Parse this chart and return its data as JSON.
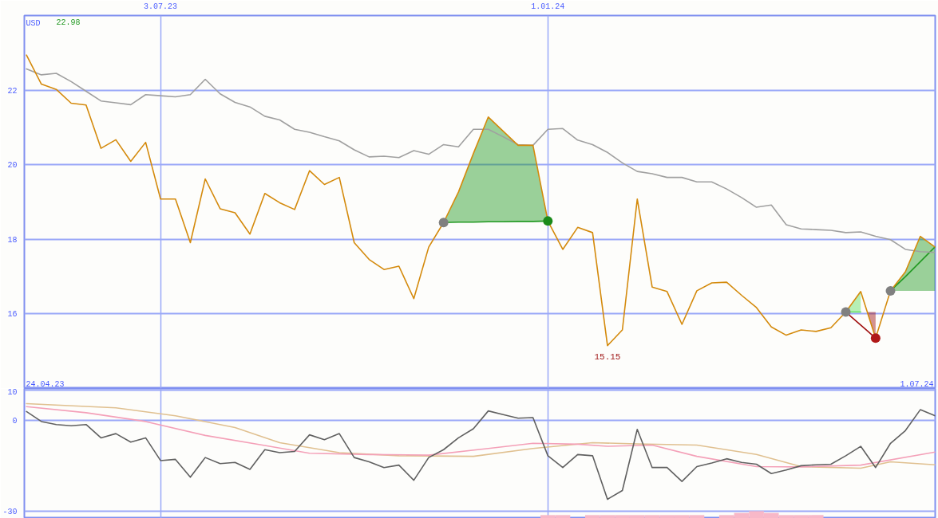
{
  "chart_data": [
    {
      "type": "line",
      "x": [
        "2023-05-01",
        "2023-05-08",
        "2023-05-15",
        "2023-05-22",
        "2023-05-29",
        "2023-06-05",
        "2023-06-12",
        "2023-06-19",
        "2023-06-26",
        "2023-07-03",
        "2023-07-10",
        "2023-07-17",
        "2023-07-24",
        "2023-07-31",
        "2023-08-07",
        "2023-08-14",
        "2023-08-21",
        "2023-08-28",
        "2023-09-04",
        "2023-09-11",
        "2023-09-18",
        "2023-09-25",
        "2023-10-02",
        "2023-10-09",
        "2023-10-16",
        "2023-10-23",
        "2023-10-30",
        "2023-11-06",
        "2023-11-13",
        "2023-11-20",
        "2023-11-27",
        "2023-12-04",
        "2023-12-11",
        "2023-12-18",
        "2023-12-25",
        "2024-01-01",
        "2024-01-08",
        "2024-01-15",
        "2024-01-22",
        "2024-01-29",
        "2024-02-05",
        "2024-02-12",
        "2024-02-19",
        "2024-02-26",
        "2024-03-04",
        "2024-03-11",
        "2024-03-18",
        "2024-03-25",
        "2024-04-01",
        "2024-04-08",
        "2024-04-15",
        "2024-04-22",
        "2024-04-29",
        "2024-05-06",
        "2024-05-13",
        "2024-05-20",
        "2024-05-27",
        "2024-06-03",
        "2024-06-10",
        "2024-06-17",
        "2024-06-24",
        "2024-07-01"
      ],
      "series": [
        {
          "color": "#229922",
          "x": [
            "2023-11-13",
            "2023-11-20",
            "2023-11-27",
            "2023-12-04",
            "2023-12-11",
            "2023-12-18",
            "2023-12-25",
            "2024-01-01"
          ],
          "values": [
            18.45,
            18.46,
            18.46,
            18.47,
            18.47,
            18.48,
            18.48,
            18.49
          ],
          "lower": [
            18.45,
            18.46,
            18.46,
            18.47,
            18.47,
            18.48,
            18.48,
            18.49
          ],
          "upper": [
            18.45,
            19.27,
            20.3,
            21.28,
            20.9,
            20.52,
            20.52,
            18.49
          ]
        },
        {
          "color": "#60e060",
          "x": [
            "2024-05-20",
            "2024-05-27"
          ],
          "values": [
            16.05,
            16.05
          ],
          "lower": [
            16.05,
            16.05
          ],
          "upper": [
            16.05,
            16.6
          ]
        },
        {
          "color": "#a01010",
          "x": [
            "2024-05-20",
            "2024-05-30",
            "2024-06-03"
          ],
          "values": [
            16.05,
            15.55,
            15.35
          ],
          "lower": [
            16.05,
            16.05,
            15.35
          ],
          "upper": [
            16.05,
            16.05,
            16.05
          ]
        },
        {
          "color": "#229922",
          "x": [
            "2024-06-10",
            "2024-06-17",
            "2024-06-24",
            "2024-07-01"
          ],
          "values": [
            16.62,
            17.0,
            17.4,
            17.8
          ],
          "lower": [
            16.62,
            16.62,
            16.62,
            16.62
          ],
          "upper": [
            16.62,
            17.13,
            18.08,
            17.79
          ]
        },
        {
          "color": "#a0a0a0",
          "values": [
            22.57,
            22.41,
            22.45,
            22.23,
            21.97,
            21.71,
            21.66,
            21.61,
            21.88,
            21.85,
            21.82,
            21.88,
            22.29,
            21.9,
            21.67,
            21.55,
            21.3,
            21.2,
            20.95,
            20.87,
            20.75,
            20.64,
            20.4,
            20.21,
            20.23,
            20.19,
            20.38,
            20.28,
            20.54,
            20.48,
            20.95,
            20.95,
            20.75,
            20.54,
            20.52,
            20.95,
            20.97,
            20.66,
            20.54,
            20.33,
            20.05,
            19.82,
            19.76,
            19.66,
            19.66,
            19.54,
            19.54,
            19.35,
            19.12,
            18.86,
            18.92,
            18.39,
            18.28,
            18.26,
            18.24,
            18.18,
            18.2,
            18.08,
            17.99,
            17.73,
            17.67,
            17.65
          ]
        },
        {
          "color": "#d48a0c",
          "values": [
            22.94,
            22.16,
            22.02,
            21.65,
            21.6,
            20.44,
            20.67,
            20.09,
            20.6,
            19.08,
            19.08,
            17.91,
            19.62,
            18.82,
            18.71,
            18.14,
            19.23,
            18.98,
            18.8,
            19.84,
            19.47,
            19.66,
            17.91,
            17.46,
            17.19,
            17.28,
            16.41,
            17.79,
            18.45,
            19.27,
            20.3,
            21.28,
            20.9,
            20.52,
            20.52,
            18.49,
            17.73,
            18.32,
            18.18,
            15.15,
            15.57,
            19.08,
            16.72,
            16.6,
            15.72,
            16.62,
            16.83,
            16.85,
            16.5,
            16.17,
            15.65,
            15.43,
            15.57,
            15.53,
            15.63,
            16.05,
            16.6,
            15.35,
            16.62,
            17.13,
            18.08,
            17.79
          ]
        },
        {
          "type": "scatter",
          "x": [
            "2023-11-13",
            "2024-01-01",
            "2024-05-20",
            "2024-06-03",
            "2024-06-10"
          ],
          "values": [
            18.45,
            18.49,
            16.05,
            15.35,
            16.62
          ],
          "colors": [
            "#808080",
            "#1a8a1a",
            "#808080",
            "#b01818",
            "#808080"
          ]
        }
      ],
      "xlim": [
        "2023-04-30",
        "2024-07-01"
      ],
      "xticks": [
        {
          "value": "2023-07-03",
          "label": "3.07.23"
        },
        {
          "value": "2024-01-01",
          "label": "1.01.24"
        }
      ],
      "ylim": [
        14,
        24
      ],
      "yticks": [
        16,
        18,
        20,
        22
      ],
      "grid": true,
      "annotations": [
        "USD",
        "22.98",
        "24.04.23",
        "1.07.24",
        {
          "text": "15.15",
          "x": "2024-01-29",
          "y": 15.15
        }
      ]
    },
    {
      "type": "line",
      "x": [
        "2023-05-01",
        "2023-05-08",
        "2023-05-15",
        "2023-05-22",
        "2023-05-29",
        "2023-06-05",
        "2023-06-12",
        "2023-06-19",
        "2023-06-26",
        "2023-07-03",
        "2023-07-10",
        "2023-07-17",
        "2023-07-24",
        "2023-07-31",
        "2023-08-07",
        "2023-08-14",
        "2023-08-21",
        "2023-08-28",
        "2023-09-04",
        "2023-09-11",
        "2023-09-18",
        "2023-09-25",
        "2023-10-02",
        "2023-10-09",
        "2023-10-16",
        "2023-10-23",
        "2023-10-30",
        "2023-11-06",
        "2023-11-13",
        "2023-11-20",
        "2023-11-27",
        "2023-12-04",
        "2023-12-11",
        "2023-12-18",
        "2023-12-25",
        "2024-01-01",
        "2024-01-08",
        "2024-01-15",
        "2024-01-22",
        "2024-01-29",
        "2024-02-05",
        "2024-02-12",
        "2024-02-19",
        "2024-02-26",
        "2024-03-04",
        "2024-03-11",
        "2024-03-18",
        "2024-03-25",
        "2024-04-01",
        "2024-04-08",
        "2024-04-15",
        "2024-04-22",
        "2024-04-29",
        "2024-05-06",
        "2024-05-13",
        "2024-05-20",
        "2024-05-27",
        "2024-06-03",
        "2024-06-10",
        "2024-06-17",
        "2024-06-24",
        "2024-07-01"
      ],
      "series": [
        {
          "type": "bar",
          "color": "#f8b8c8",
          "x": [
            "2024-01-01",
            "2024-01-08",
            "2024-01-22",
            "2024-01-29",
            "2024-02-05",
            "2024-02-12",
            "2024-02-19",
            "2024-02-26",
            "2024-03-04",
            "2024-03-11",
            "2024-03-25",
            "2024-04-01",
            "2024-04-08",
            "2024-04-15",
            "2024-04-22",
            "2024-04-29",
            "2024-05-06"
          ],
          "values": [
            1.1,
            1.1,
            1.1,
            1.1,
            1.1,
            1.1,
            1.1,
            1.1,
            1.1,
            1.1,
            1.1,
            1.8,
            2.4,
            1.8,
            1.1,
            1.1,
            1.1
          ],
          "base": [
            -32.4,
            -32.4,
            -32.4,
            -32.4,
            -32.4,
            -32.4,
            -32.4,
            -32.4,
            -32.4,
            -32.4,
            -32.4,
            -32.4,
            -32.4,
            -32.4,
            -32.4,
            -32.4,
            -32.4
          ]
        },
        {
          "color": "#e0c090",
          "x": [
            "2023-05-01",
            "2023-06-12",
            "2023-07-10",
            "2023-08-07",
            "2023-08-28",
            "2023-09-25",
            "2023-10-23",
            "2023-11-27",
            "2023-12-25",
            "2024-01-22",
            "2024-02-12",
            "2024-03-11",
            "2024-04-08",
            "2024-04-29",
            "2024-05-27",
            "2024-06-10",
            "2024-07-01"
          ],
          "values": [
            5.5,
            4.1,
            1.5,
            -2.4,
            -7.4,
            -10.7,
            -11.7,
            -11.9,
            -9.3,
            -7.4,
            -7.8,
            -8.2,
            -11.3,
            -15.3,
            -15.8,
            -13.7,
            -14.7
          ]
        },
        {
          "color": "#f4a0b8",
          "x": [
            "2023-05-01",
            "2023-05-29",
            "2023-06-26",
            "2023-07-24",
            "2023-08-21",
            "2023-09-11",
            "2023-10-09",
            "2023-11-06",
            "2023-12-04",
            "2023-12-25",
            "2024-01-15",
            "2024-01-29",
            "2024-02-19",
            "2024-03-11",
            "2024-04-08",
            "2024-04-29",
            "2024-05-27",
            "2024-07-01"
          ],
          "values": [
            4.5,
            2.5,
            -0.4,
            -5.0,
            -8.3,
            -10.9,
            -11.3,
            -11.5,
            -9.3,
            -7.6,
            -7.9,
            -8.6,
            -8.2,
            -11.9,
            -15.3,
            -15.4,
            -14.8,
            -10.5
          ]
        },
        {
          "color": "#606060",
          "values": [
            2.9,
            -0.4,
            -1.4,
            -1.8,
            -1.4,
            -5.8,
            -4.4,
            -7.2,
            -5.8,
            -13.3,
            -12.9,
            -18.8,
            -12.3,
            -14.3,
            -13.9,
            -16.2,
            -9.7,
            -10.7,
            -10.3,
            -4.8,
            -6.4,
            -4.4,
            -12.3,
            -13.7,
            -15.6,
            -14.8,
            -19.8,
            -12.3,
            -9.7,
            -5.8,
            -2.8,
            3.1,
            1.9,
            0.7,
            0.9,
            -11.7,
            -15.6,
            -11.3,
            -11.7,
            -26.1,
            -23.2,
            -3.0,
            -15.6,
            -15.6,
            -20.2,
            -15.3,
            -14.1,
            -12.7,
            -13.9,
            -14.5,
            -17.6,
            -16.4,
            -15.0,
            -14.7,
            -14.5,
            -11.7,
            -8.6,
            -15.6,
            -7.6,
            -3.4,
            3.5,
            1.5
          ]
        }
      ],
      "xlim": [
        "2023-04-30",
        "2024-07-01"
      ],
      "xticks": [
        {
          "value": "2023-07-03",
          "label": null
        },
        {
          "value": "2024-01-01",
          "label": null
        }
      ],
      "ylim": [
        -32.4,
        10.5
      ],
      "yticks": [
        10,
        0,
        -30
      ],
      "grid": true,
      "tick_labels": "y"
    }
  ]
}
